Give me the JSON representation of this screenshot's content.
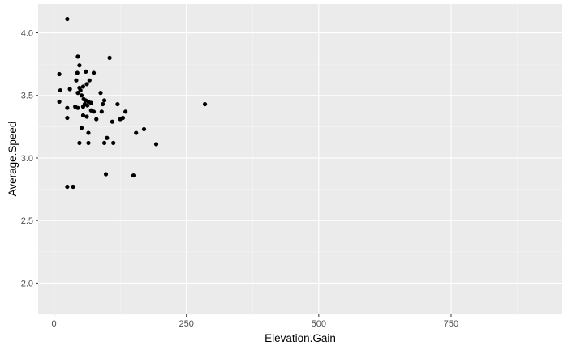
{
  "chart_data": {
    "type": "scatter",
    "xlabel": "Elevation.Gain",
    "ylabel": "Average.Speed",
    "xlim": [
      -30,
      960
    ],
    "ylim": [
      1.75,
      4.23
    ],
    "x_ticks": [
      0,
      250,
      500,
      750
    ],
    "x_tick_labels": [
      "0",
      "250",
      "500",
      "750"
    ],
    "y_ticks": [
      2.0,
      2.5,
      3.0,
      3.5,
      4.0
    ],
    "y_tick_labels": [
      "2.0",
      "2.5",
      "3.0",
      "3.5",
      "4.0"
    ],
    "grid": true,
    "colors": {
      "panel_background": "#ebebeb",
      "grid_major": "#ffffff",
      "grid_minor": "#f5f5f5",
      "point": "#000000",
      "tick_text": "#4d4d4d",
      "axis_title": "#000000"
    },
    "points": [
      [
        25,
        4.11
      ],
      [
        10,
        3.67
      ],
      [
        12,
        3.54
      ],
      [
        10,
        3.45
      ],
      [
        45,
        3.81
      ],
      [
        48,
        3.74
      ],
      [
        30,
        3.55
      ],
      [
        42,
        3.62
      ],
      [
        44,
        3.68
      ],
      [
        60,
        3.69
      ],
      [
        75,
        3.68
      ],
      [
        105,
        3.8
      ],
      [
        67,
        3.62
      ],
      [
        62,
        3.59
      ],
      [
        55,
        3.57
      ],
      [
        50,
        3.54
      ],
      [
        48,
        3.56
      ],
      [
        45,
        3.52
      ],
      [
        52,
        3.5
      ],
      [
        56,
        3.47
      ],
      [
        60,
        3.46
      ],
      [
        65,
        3.45
      ],
      [
        70,
        3.44
      ],
      [
        88,
        3.52
      ],
      [
        95,
        3.46
      ],
      [
        92,
        3.43
      ],
      [
        120,
        3.43
      ],
      [
        25,
        3.4
      ],
      [
        40,
        3.41
      ],
      [
        45,
        3.4
      ],
      [
        55,
        3.41
      ],
      [
        58,
        3.43
      ],
      [
        63,
        3.42
      ],
      [
        70,
        3.38
      ],
      [
        75,
        3.37
      ],
      [
        90,
        3.37
      ],
      [
        135,
        3.37
      ],
      [
        125,
        3.31
      ],
      [
        130,
        3.32
      ],
      [
        110,
        3.29
      ],
      [
        80,
        3.31
      ],
      [
        25,
        3.32
      ],
      [
        55,
        3.34
      ],
      [
        62,
        3.33
      ],
      [
        52,
        3.24
      ],
      [
        65,
        3.2
      ],
      [
        170,
        3.23
      ],
      [
        155,
        3.2
      ],
      [
        100,
        3.16
      ],
      [
        48,
        3.12
      ],
      [
        65,
        3.12
      ],
      [
        95,
        3.12
      ],
      [
        112,
        3.12
      ],
      [
        193,
        3.11
      ],
      [
        285,
        3.43
      ],
      [
        98,
        2.87
      ],
      [
        150,
        2.86
      ],
      [
        25,
        2.77
      ],
      [
        36,
        2.77
      ]
    ]
  }
}
